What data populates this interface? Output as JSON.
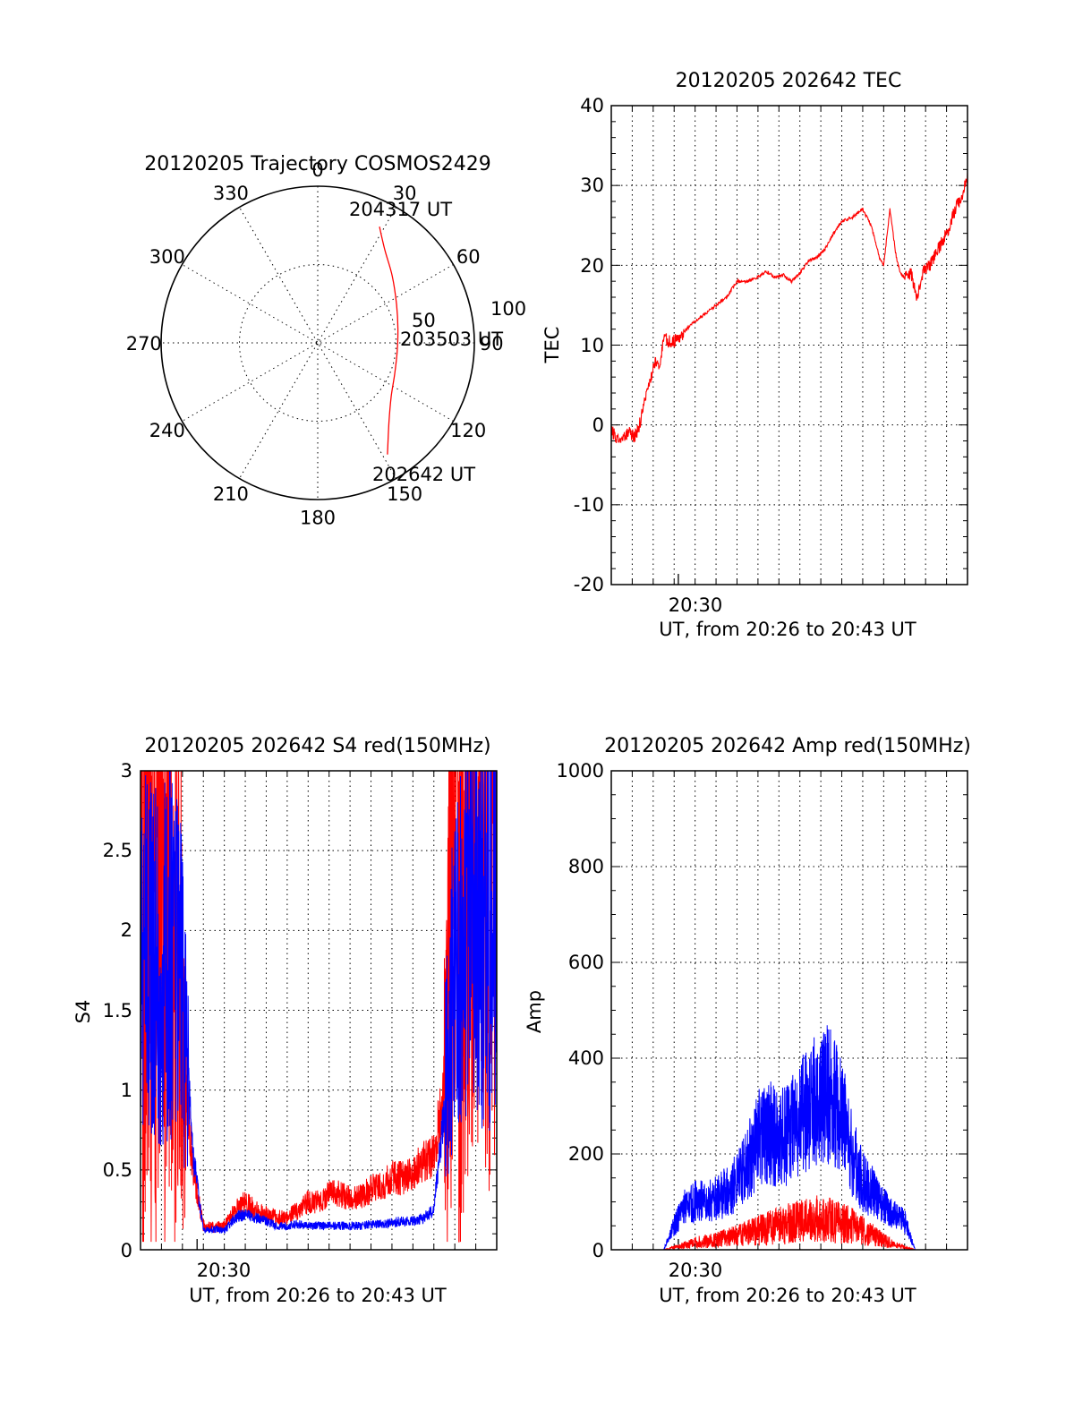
{
  "colors": {
    "red": "#ff0000",
    "blue": "#0000ff",
    "axis": "#000000",
    "background": "#ffffff"
  },
  "polar": {
    "title": "20120205 Trajectory COSMOS2429",
    "angle_labels": [
      "0",
      "30",
      "60",
      "90",
      "120",
      "150",
      "180",
      "210",
      "240",
      "270",
      "300",
      "330"
    ],
    "radial_labels": [
      "50",
      "100"
    ],
    "annotations": {
      "start": "202642 UT",
      "mid": "203503 UT",
      "end": "204317 UT"
    }
  },
  "tec": {
    "title": "20120205 202642 TEC",
    "ylabel": "TEC",
    "xlabel": "UT, from 20:26 to 20:43 UT",
    "xtick_label": "20:30",
    "yticks": [
      "40",
      "30",
      "20",
      "10",
      "0",
      "-10",
      "-20"
    ]
  },
  "s4": {
    "title": "20120205 202642 S4 red(150MHz)",
    "ylabel": "S4",
    "xlabel": "UT, from 20:26 to 20:43 UT",
    "xtick_label": "20:30",
    "yticks": [
      "3",
      "2.5",
      "2",
      "1.5",
      "1",
      "0.5",
      "0"
    ]
  },
  "amp": {
    "title": "20120205 202642 Amp red(150MHz)",
    "ylabel": "Amp",
    "xlabel": "UT, from 20:26 to 20:43 UT",
    "xtick_label": "20:30",
    "yticks": [
      "1000",
      "800",
      "600",
      "400",
      "200",
      "0"
    ]
  },
  "chart_data": [
    {
      "type": "scatter",
      "title": "20120205 Trajectory COSMOS2429",
      "coordinate_system": "polar (azimuth deg, zenith-distance deg)",
      "radial_range": [
        0,
        100
      ],
      "theta_ticks": [
        0,
        30,
        60,
        90,
        120,
        150,
        180,
        210,
        240,
        270,
        300,
        330
      ],
      "grid": true,
      "series": [
        {
          "points": [
            {
              "azimuth": 148,
              "zenith": 84
            },
            {
              "azimuth": 138,
              "zenith": 68
            },
            {
              "azimuth": 126,
              "zenith": 58
            },
            {
              "azimuth": 112,
              "zenith": 53
            },
            {
              "azimuth": 96,
              "zenith": 51
            },
            {
              "azimuth": 80,
              "zenith": 52
            },
            {
              "azimuth": 64,
              "zenith": 56
            },
            {
              "azimuth": 48,
              "zenith": 64
            },
            {
              "azimuth": 36,
              "zenith": 73
            },
            {
              "azimuth": 28,
              "zenith": 84
            }
          ],
          "annotations": [
            {
              "text": "202642 UT",
              "azimuth": 148,
              "zenith": 84
            },
            {
              "text": "203503 UT",
              "azimuth": 96,
              "zenith": 51
            },
            {
              "text": "204317 UT",
              "azimuth": 28,
              "zenith": 84
            }
          ]
        }
      ]
    },
    {
      "type": "line",
      "title": "20120205 202642 TEC",
      "xlabel": "UT, from 20:26 to 20:43 UT",
      "ylabel": "TEC",
      "x_unit": "minutes since 20:26 UT",
      "xlim": [
        0,
        17
      ],
      "ylim": [
        -20,
        40
      ],
      "xtick_major": [
        {
          "x": 3.2,
          "label": "20:30"
        }
      ],
      "grid": true,
      "series": [
        {
          "x": [
            0.0,
            0.3,
            0.6,
            0.9,
            1.1,
            1.3,
            1.6,
            1.8,
            2.1,
            2.3,
            2.5,
            2.75,
            3.0,
            3.3,
            3.6,
            4.0,
            4.5,
            5.0,
            5.5,
            6.0,
            6.5,
            7.0,
            7.4,
            7.8,
            8.2,
            8.6,
            9.0,
            9.4,
            9.8,
            10.2,
            10.6,
            11.0,
            11.5,
            12.0,
            12.4,
            12.8,
            13.0,
            13.3,
            13.6,
            13.8,
            14.0,
            14.3,
            14.6,
            14.9,
            15.2,
            15.5,
            15.8,
            16.1,
            16.4,
            16.7,
            17.0
          ],
          "y": [
            -0.5,
            -2.0,
            -1.5,
            -1.0,
            -1.5,
            -0.5,
            3.0,
            5.0,
            8.0,
            7.0,
            11.0,
            10.5,
            10.5,
            11.0,
            12.0,
            13.0,
            14.0,
            15.0,
            16.0,
            18.0,
            18.0,
            18.5,
            19.2,
            18.5,
            18.8,
            18.0,
            19.0,
            20.5,
            21.0,
            22.0,
            24.0,
            25.5,
            26.0,
            27.0,
            25.0,
            21.0,
            20.0,
            27.0,
            21.0,
            19.0,
            18.5,
            19.0,
            16.0,
            19.5,
            20.0,
            21.5,
            23.0,
            24.5,
            27.0,
            28.5,
            31.0
          ]
        }
      ]
    },
    {
      "type": "line",
      "title": "20120205 202642 S4 red(150MHz)",
      "xlabel": "UT, from 20:26 to 20:43 UT",
      "ylabel": "S4",
      "x_unit": "minutes since 20:26 UT",
      "xlim": [
        0,
        17
      ],
      "ylim": [
        0,
        3
      ],
      "xtick_major": [
        {
          "x": 2.7,
          "label": "20:30"
        }
      ],
      "grid": true,
      "series": [
        {
          "color": "red",
          "x": [
            0.0,
            0.5,
            1.0,
            1.5,
            2.0,
            2.5,
            3.0,
            3.5,
            4.0,
            4.5,
            5.0,
            5.5,
            6.0,
            6.5,
            7.0,
            7.5,
            8.0,
            8.5,
            9.0,
            9.5,
            10.0,
            10.5,
            11.0,
            11.5,
            12.0,
            12.5,
            13.0,
            13.5,
            14.0,
            14.5,
            15.0,
            15.5,
            16.0,
            16.5,
            17.0
          ],
          "y": [
            2.0,
            2.5,
            2.2,
            2.0,
            1.3,
            0.5,
            0.15,
            0.14,
            0.15,
            0.25,
            0.3,
            0.25,
            0.22,
            0.2,
            0.2,
            0.25,
            0.3,
            0.3,
            0.35,
            0.35,
            0.32,
            0.33,
            0.38,
            0.4,
            0.45,
            0.45,
            0.48,
            0.55,
            0.6,
            1.0,
            2.4,
            2.6,
            2.7,
            2.6,
            2.4
          ]
        },
        {
          "color": "blue",
          "x": [
            0.0,
            0.5,
            1.0,
            1.5,
            2.0,
            2.5,
            3.0,
            3.5,
            4.0,
            4.5,
            5.0,
            5.5,
            6.0,
            6.5,
            7.0,
            7.5,
            8.0,
            8.5,
            9.0,
            9.5,
            10.0,
            10.5,
            11.0,
            11.5,
            12.0,
            12.5,
            13.0,
            13.5,
            14.0,
            14.5,
            15.0,
            15.5,
            16.0,
            16.5,
            17.0
          ],
          "y": [
            1.8,
            1.9,
            1.8,
            1.9,
            1.6,
            0.6,
            0.12,
            0.13,
            0.12,
            0.2,
            0.22,
            0.2,
            0.18,
            0.15,
            0.15,
            0.16,
            0.15,
            0.15,
            0.15,
            0.15,
            0.15,
            0.15,
            0.16,
            0.16,
            0.17,
            0.18,
            0.18,
            0.2,
            0.25,
            0.9,
            2.0,
            2.1,
            2.2,
            2.1,
            2.0
          ]
        }
      ]
    },
    {
      "type": "line",
      "title": "20120205 202642 Amp red(150MHz)",
      "xlabel": "UT, from 20:26 to 20:43 UT",
      "ylabel": "Amp",
      "x_unit": "minutes since 20:26 UT",
      "xlim": [
        0,
        17
      ],
      "ylim": [
        0,
        1000
      ],
      "xtick_major": [
        {
          "x": 3.2,
          "label": "20:30"
        }
      ],
      "grid": true,
      "series": [
        {
          "color": "blue",
          "x": [
            0.0,
            1.0,
            2.0,
            2.5,
            3.0,
            3.5,
            4.0,
            4.5,
            5.0,
            5.5,
            6.0,
            6.5,
            7.0,
            7.5,
            8.0,
            8.5,
            9.0,
            9.5,
            10.0,
            10.5,
            11.0,
            11.5,
            12.0,
            12.5,
            13.0,
            13.5,
            14.0,
            14.5,
            15.0,
            16.0,
            17.0
          ],
          "y": [
            0,
            0,
            0,
            0,
            50,
            90,
            100,
            100,
            110,
            120,
            140,
            180,
            230,
            250,
            230,
            240,
            280,
            300,
            330,
            320,
            280,
            200,
            140,
            120,
            90,
            70,
            60,
            0,
            0,
            0,
            0
          ]
        },
        {
          "color": "red",
          "x": [
            0.0,
            1.0,
            2.0,
            2.5,
            3.0,
            3.5,
            4.0,
            4.5,
            5.0,
            5.5,
            6.0,
            6.5,
            7.0,
            7.5,
            8.0,
            8.5,
            9.0,
            9.5,
            10.0,
            10.5,
            11.0,
            11.5,
            12.0,
            12.5,
            13.0,
            13.5,
            14.0,
            14.5,
            15.0,
            16.0,
            17.0
          ],
          "y": [
            0,
            0,
            0,
            0,
            5,
            10,
            15,
            18,
            20,
            25,
            30,
            35,
            40,
            45,
            50,
            55,
            60,
            60,
            65,
            60,
            55,
            50,
            40,
            30,
            20,
            10,
            5,
            0,
            0,
            0,
            0
          ]
        }
      ]
    }
  ]
}
